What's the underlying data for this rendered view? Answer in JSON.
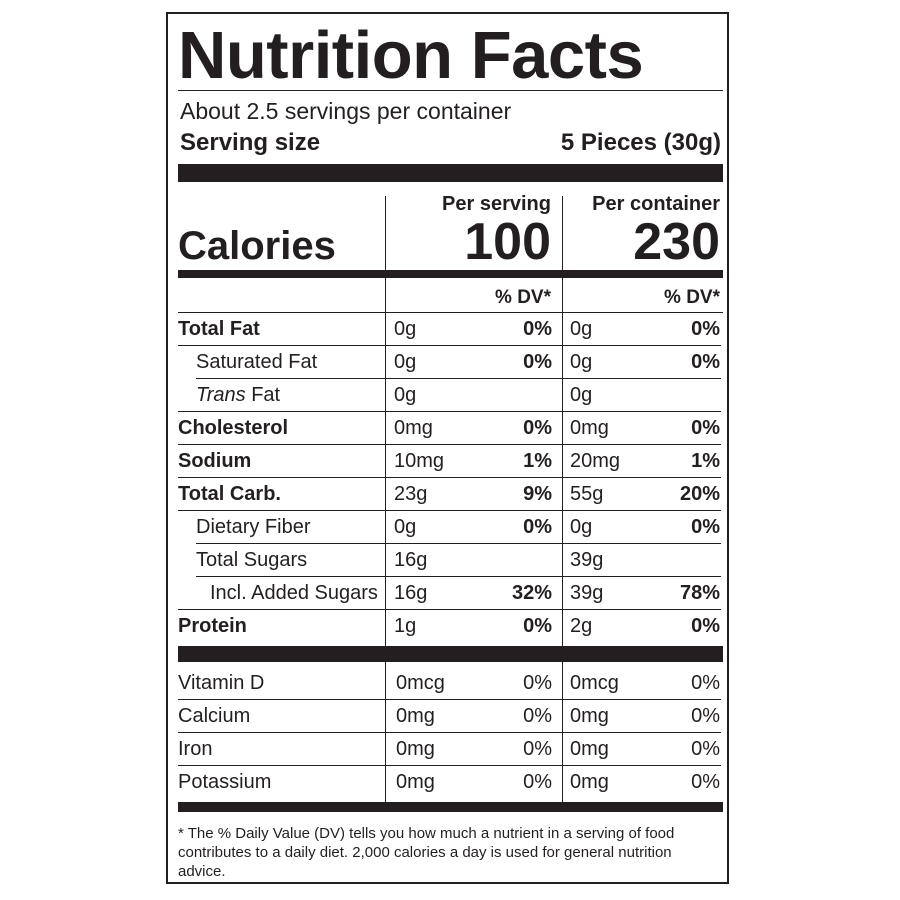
{
  "title": "Nutrition Facts",
  "servings_per_container": "About 2.5 servings per container",
  "serving_size": {
    "label": "Serving size",
    "value": "5 Pieces (30g)"
  },
  "calories": {
    "label": "Calories",
    "per_serving_header": "Per serving",
    "per_container_header": "Per container",
    "per_serving": "100",
    "per_container": "230"
  },
  "dv_header": "% DV*",
  "nutrients": [
    {
      "name": "Total Fat",
      "style": "bold",
      "serving_amount": "0g",
      "serving_dv": "0%",
      "container_amount": "0g",
      "container_dv": "0%"
    },
    {
      "name": "Saturated Fat",
      "style": "indent",
      "serving_amount": "0g",
      "serving_dv": "0%",
      "container_amount": "0g",
      "container_dv": "0%"
    },
    {
      "name_italic": "Trans",
      "name": " Fat",
      "style": "indent",
      "serving_amount": "0g",
      "serving_dv": "",
      "container_amount": "0g",
      "container_dv": ""
    },
    {
      "name": "Cholesterol",
      "style": "bold",
      "serving_amount": "0mg",
      "serving_dv": "0%",
      "container_amount": "0mg",
      "container_dv": "0%"
    },
    {
      "name": "Sodium",
      "style": "bold",
      "serving_amount": "10mg",
      "serving_dv": "1%",
      "container_amount": "20mg",
      "container_dv": "1%"
    },
    {
      "name": "Total Carb.",
      "style": "bold",
      "serving_amount": "23g",
      "serving_dv": "9%",
      "container_amount": "55g",
      "container_dv": "20%"
    },
    {
      "name": "Dietary Fiber",
      "style": "indent",
      "serving_amount": "0g",
      "serving_dv": "0%",
      "container_amount": "0g",
      "container_dv": "0%"
    },
    {
      "name": "Total Sugars",
      "style": "indent",
      "serving_amount": "16g",
      "serving_dv": "",
      "container_amount": "39g",
      "container_dv": ""
    },
    {
      "name": "Incl. Added Sugars",
      "style": "indent2",
      "serving_amount": "16g",
      "serving_dv": "32%",
      "container_amount": "39g",
      "container_dv": "78%"
    },
    {
      "name": "Protein",
      "style": "bold",
      "serving_amount": "1g",
      "serving_dv": "0%",
      "container_amount": "2g",
      "container_dv": "0%"
    }
  ],
  "vitamins": [
    {
      "name": "Vitamin D",
      "serving_amount": "0mcg",
      "serving_dv": "0%",
      "container_amount": "0mcg",
      "container_dv": "0%"
    },
    {
      "name": "Calcium",
      "serving_amount": "0mg",
      "serving_dv": "0%",
      "container_amount": "0mg",
      "container_dv": "0%"
    },
    {
      "name": "Iron",
      "serving_amount": "0mg",
      "serving_dv": "0%",
      "container_amount": "0mg",
      "container_dv": "0%"
    },
    {
      "name": "Potassium",
      "serving_amount": "0mg",
      "serving_dv": "0%",
      "container_amount": "0mg",
      "container_dv": "0%"
    }
  ],
  "footnote": "* The % Daily Value (DV) tells you how much a nutrient in a serving of food contributes to a daily diet. 2,000 calories a day is used for general nutrition advice."
}
